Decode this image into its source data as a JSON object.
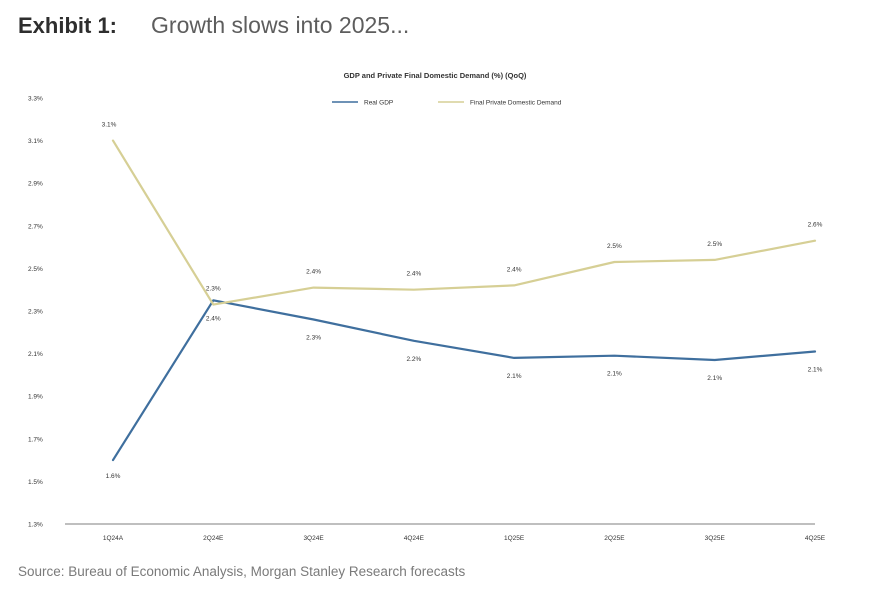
{
  "header": {
    "exhibit_label": "Exhibit 1:",
    "exhibit_title": "Growth slows into 2025..."
  },
  "source": "Source: Bureau of Economic Analysis, Morgan Stanley Research forecasts",
  "colors": {
    "real_gdp": "#3f6f9e",
    "final_private_domestic_demand": "#d6cf95",
    "axis": "#555555",
    "text": "#333333"
  },
  "chart_data": {
    "type": "line",
    "title": "GDP and Private Final Domestic Demand (%) (QoQ)",
    "xlabel": "",
    "ylabel": "",
    "categories": [
      "1Q24A",
      "2Q24E",
      "3Q24E",
      "4Q24E",
      "1Q25E",
      "2Q25E",
      "3Q25E",
      "4Q25E"
    ],
    "ylim": [
      1.3,
      3.3
    ],
    "yticks": [
      1.3,
      1.5,
      1.7,
      1.9,
      2.1,
      2.3,
      2.5,
      2.7,
      2.9,
      3.1,
      3.3
    ],
    "ytick_labels": [
      "1.3%",
      "1.5%",
      "1.7%",
      "1.9%",
      "2.1%",
      "2.3%",
      "2.5%",
      "2.7%",
      "2.9%",
      "3.1%",
      "3.3%"
    ],
    "grid": false,
    "legend_position": "top-center",
    "series": [
      {
        "name": "Real GDP",
        "values": [
          1.6,
          2.35,
          2.26,
          2.16,
          2.08,
          2.09,
          2.07,
          2.11
        ],
        "labels": [
          "1.6%",
          "2.4%",
          "2.3%",
          "2.2%",
          "2.1%",
          "2.1%",
          "2.1%",
          "2.1%"
        ],
        "label_pos": [
          "below",
          "below",
          "below",
          "below",
          "below",
          "below",
          "below",
          "below"
        ]
      },
      {
        "name": "Final Private Domestic Demand",
        "values": [
          3.1,
          2.33,
          2.41,
          2.4,
          2.42,
          2.53,
          2.54,
          2.63
        ],
        "labels": [
          "3.1%",
          "2.3%",
          "2.4%",
          "2.4%",
          "2.4%",
          "2.5%",
          "2.5%",
          "2.6%"
        ],
        "label_pos": [
          "above",
          "above",
          "above",
          "above",
          "above",
          "above",
          "above",
          "above"
        ]
      }
    ]
  }
}
